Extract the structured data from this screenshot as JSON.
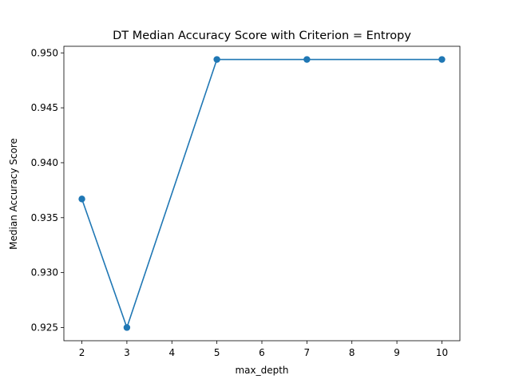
{
  "chart_data": {
    "type": "line",
    "title": "DT Median Accuracy Score with Criterion = Entropy",
    "xlabel": "max_depth",
    "ylabel": "Median Accuracy Score",
    "xlim": [
      1.6,
      10.4
    ],
    "ylim": [
      0.9238,
      0.9506
    ],
    "xticks": [
      2,
      3,
      4,
      5,
      6,
      7,
      8,
      9,
      10
    ],
    "xtick_labels": [
      "2",
      "3",
      "4",
      "5",
      "6",
      "7",
      "8",
      "9",
      "10"
    ],
    "yticks": [
      0.925,
      0.93,
      0.935,
      0.94,
      0.945,
      0.95
    ],
    "ytick_labels": [
      "0.925",
      "0.930",
      "0.935",
      "0.940",
      "0.945",
      "0.950"
    ],
    "grid": false,
    "series": [
      {
        "x": [
          2,
          3,
          5,
          7,
          10
        ],
        "y": [
          0.9367,
          0.925,
          0.9494,
          0.9494,
          0.9494
        ],
        "color": "#1f77b4",
        "marker": "circle"
      }
    ]
  }
}
